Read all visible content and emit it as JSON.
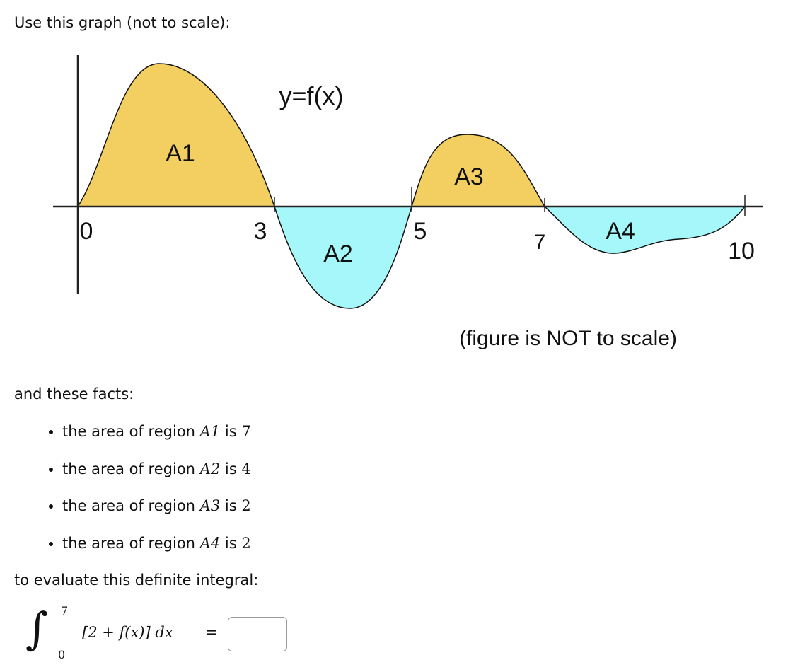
{
  "intro": "Use this graph (not to scale):",
  "figure": {
    "curve_label": "y=f(x)",
    "regions": [
      "A1",
      "A2",
      "A3",
      "A4"
    ],
    "ticks": [
      "0",
      "3",
      "5",
      "7",
      "10"
    ],
    "note": "(figure is NOT to scale)"
  },
  "facts_intro": "and these facts:",
  "facts": [
    {
      "text": "the area of region",
      "region": "A1",
      "verb": "is",
      "area": 7
    },
    {
      "text": "the area of region",
      "region": "A2",
      "verb": "is",
      "area": 4
    },
    {
      "text": "the area of region",
      "region": "A3",
      "verb": "is",
      "area": 2
    },
    {
      "text": "the area of region",
      "region": "A4",
      "verb": "is",
      "area": 2
    }
  ],
  "outro": "to evaluate this definite integral:",
  "integral": {
    "lower": 0,
    "upper": 7,
    "integrand": "[2 + f(x)] dx",
    "equals": "="
  }
}
